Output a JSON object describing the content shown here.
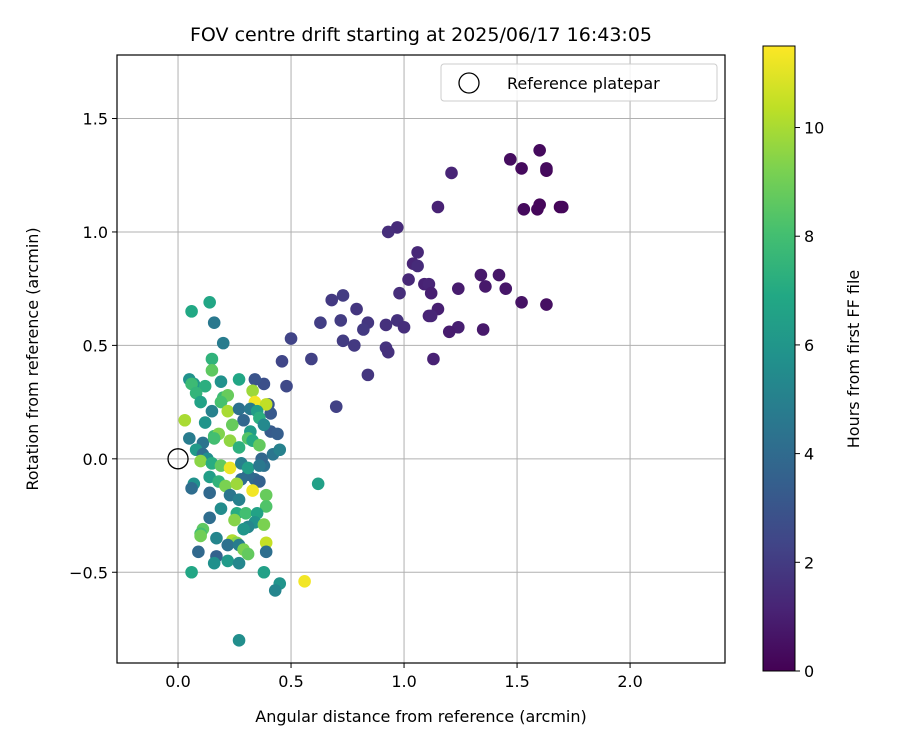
{
  "chart_data": {
    "type": "scatter",
    "title": "FOV centre drift starting at 2025/06/17 16:43:05",
    "xlabel": "Angular distance from reference (arcmin)",
    "ylabel": "Rotation from reference (arcmin)",
    "xlim": [
      -0.27,
      2.42
    ],
    "ylim": [
      -0.9,
      1.78
    ],
    "xticks": [
      0.0,
      0.5,
      1.0,
      1.5,
      2.0
    ],
    "xtick_labels": [
      "0.0",
      "0.5",
      "1.0",
      "1.5",
      "2.0"
    ],
    "yticks": [
      -0.5,
      0.0,
      0.5,
      1.0,
      1.5
    ],
    "ytick_labels": [
      "−0.5",
      "0.0",
      "0.5",
      "1.0",
      "1.5"
    ],
    "grid": true,
    "legend": {
      "entries": [
        "Reference platepar"
      ],
      "placement": "top-right"
    },
    "colorbar": {
      "label": "Hours from first FF file",
      "colormap": "viridis",
      "range": [
        0,
        11.5
      ],
      "ticks": [
        0,
        2,
        4,
        6,
        8,
        10
      ],
      "tick_labels": [
        "0",
        "2",
        "4",
        "6",
        "8",
        "10"
      ]
    },
    "reference_point": {
      "name": "Reference platepar",
      "x": 0.0,
      "y": 0.0
    },
    "series": [
      {
        "points": [
          {
            "x": 1.6,
            "y": 1.36,
            "c": 0.3
          },
          {
            "x": 1.47,
            "y": 1.32,
            "c": 0.4
          },
          {
            "x": 1.52,
            "y": 1.28,
            "c": 0.3
          },
          {
            "x": 1.63,
            "y": 1.27,
            "c": 0.2
          },
          {
            "x": 1.63,
            "y": 1.28,
            "c": 0.3
          },
          {
            "x": 1.6,
            "y": 1.12,
            "c": 0.2
          },
          {
            "x": 1.69,
            "y": 1.11,
            "c": 0.1
          },
          {
            "x": 1.7,
            "y": 1.11,
            "c": 0.2
          },
          {
            "x": 1.53,
            "y": 1.1,
            "c": 0.3
          },
          {
            "x": 1.59,
            "y": 1.1,
            "c": 0.2
          },
          {
            "x": 1.21,
            "y": 1.26,
            "c": 1.2
          },
          {
            "x": 1.15,
            "y": 1.11,
            "c": 1.1
          },
          {
            "x": 0.97,
            "y": 1.02,
            "c": 1.4
          },
          {
            "x": 0.93,
            "y": 1.0,
            "c": 1.5
          },
          {
            "x": 1.06,
            "y": 0.91,
            "c": 1.3
          },
          {
            "x": 1.04,
            "y": 0.86,
            "c": 1.2
          },
          {
            "x": 1.06,
            "y": 0.85,
            "c": 1.4
          },
          {
            "x": 1.02,
            "y": 0.79,
            "c": 1.3
          },
          {
            "x": 1.09,
            "y": 0.77,
            "c": 1.1
          },
          {
            "x": 1.11,
            "y": 0.77,
            "c": 1.2
          },
          {
            "x": 1.12,
            "y": 0.73,
            "c": 1.0
          },
          {
            "x": 0.98,
            "y": 0.73,
            "c": 1.5
          },
          {
            "x": 1.24,
            "y": 0.75,
            "c": 0.9
          },
          {
            "x": 1.34,
            "y": 0.81,
            "c": 0.8
          },
          {
            "x": 1.42,
            "y": 0.81,
            "c": 0.7
          },
          {
            "x": 1.36,
            "y": 0.76,
            "c": 0.8
          },
          {
            "x": 1.45,
            "y": 0.75,
            "c": 0.7
          },
          {
            "x": 1.52,
            "y": 0.69,
            "c": 0.6
          },
          {
            "x": 1.63,
            "y": 0.68,
            "c": 0.5
          },
          {
            "x": 1.15,
            "y": 0.66,
            "c": 1.0
          },
          {
            "x": 1.11,
            "y": 0.63,
            "c": 1.1
          },
          {
            "x": 1.12,
            "y": 0.63,
            "c": 1.2
          },
          {
            "x": 1.24,
            "y": 0.58,
            "c": 1.0
          },
          {
            "x": 1.2,
            "y": 0.56,
            "c": 0.9
          },
          {
            "x": 1.35,
            "y": 0.57,
            "c": 0.8
          },
          {
            "x": 1.13,
            "y": 0.44,
            "c": 1.1
          },
          {
            "x": 0.97,
            "y": 0.61,
            "c": 1.6
          },
          {
            "x": 1.0,
            "y": 0.58,
            "c": 1.5
          },
          {
            "x": 0.92,
            "y": 0.59,
            "c": 1.6
          },
          {
            "x": 0.92,
            "y": 0.49,
            "c": 1.7
          },
          {
            "x": 0.93,
            "y": 0.47,
            "c": 1.6
          },
          {
            "x": 0.68,
            "y": 0.7,
            "c": 1.9
          },
          {
            "x": 0.73,
            "y": 0.72,
            "c": 2.0
          },
          {
            "x": 0.79,
            "y": 0.66,
            "c": 1.8
          },
          {
            "x": 0.63,
            "y": 0.6,
            "c": 2.1
          },
          {
            "x": 0.72,
            "y": 0.61,
            "c": 2.0
          },
          {
            "x": 0.84,
            "y": 0.6,
            "c": 1.8
          },
          {
            "x": 0.82,
            "y": 0.57,
            "c": 1.9
          },
          {
            "x": 0.73,
            "y": 0.52,
            "c": 2.0
          },
          {
            "x": 0.78,
            "y": 0.5,
            "c": 1.9
          },
          {
            "x": 0.5,
            "y": 0.53,
            "c": 2.3
          },
          {
            "x": 0.59,
            "y": 0.44,
            "c": 2.2
          },
          {
            "x": 0.46,
            "y": 0.43,
            "c": 2.4
          },
          {
            "x": 0.84,
            "y": 0.37,
            "c": 1.8
          },
          {
            "x": 0.48,
            "y": 0.32,
            "c": 2.5
          },
          {
            "x": 0.7,
            "y": 0.23,
            "c": 2.2
          },
          {
            "x": 0.38,
            "y": 0.33,
            "c": 2.8
          },
          {
            "x": 0.34,
            "y": 0.35,
            "c": 3.0
          },
          {
            "x": 0.4,
            "y": 0.24,
            "c": 3.1
          },
          {
            "x": 0.41,
            "y": 0.2,
            "c": 3.2
          },
          {
            "x": 0.41,
            "y": 0.12,
            "c": 3.3
          },
          {
            "x": 0.44,
            "y": 0.11,
            "c": 3.4
          },
          {
            "x": 0.42,
            "y": 0.02,
            "c": 4.5
          },
          {
            "x": 0.45,
            "y": 0.04,
            "c": 5.0
          },
          {
            "x": 0.38,
            "y": -0.03,
            "c": 4.2
          },
          {
            "x": 0.37,
            "y": 0.0,
            "c": 3.8
          },
          {
            "x": 0.34,
            "y": -0.09,
            "c": 3.9
          },
          {
            "x": 0.36,
            "y": -0.1,
            "c": 3.6
          },
          {
            "x": 0.31,
            "y": -0.07,
            "c": 4.0
          },
          {
            "x": 0.28,
            "y": -0.09,
            "c": 4.1
          },
          {
            "x": 0.16,
            "y": 0.6,
            "c": 4.6
          },
          {
            "x": 0.2,
            "y": 0.51,
            "c": 4.8
          },
          {
            "x": 0.14,
            "y": 0.69,
            "c": 6.8
          },
          {
            "x": 0.06,
            "y": 0.65,
            "c": 6.9
          },
          {
            "x": 0.15,
            "y": 0.44,
            "c": 7.4
          },
          {
            "x": 0.15,
            "y": 0.39,
            "c": 8.6
          },
          {
            "x": 0.05,
            "y": 0.35,
            "c": 5.8
          },
          {
            "x": 0.07,
            "y": 0.33,
            "c": 6.2
          },
          {
            "x": 0.12,
            "y": 0.32,
            "c": 7.2
          },
          {
            "x": 0.06,
            "y": 0.33,
            "c": 7.8
          },
          {
            "x": 0.08,
            "y": 0.29,
            "c": 7.5
          },
          {
            "x": 0.19,
            "y": 0.34,
            "c": 5.8
          },
          {
            "x": 0.27,
            "y": 0.35,
            "c": 6.8
          },
          {
            "x": 0.2,
            "y": 0.27,
            "c": 7.8
          },
          {
            "x": 0.22,
            "y": 0.28,
            "c": 8.8
          },
          {
            "x": 0.33,
            "y": 0.3,
            "c": 9.8
          },
          {
            "x": 0.34,
            "y": 0.25,
            "c": 11.3
          },
          {
            "x": 0.39,
            "y": 0.24,
            "c": 10.4
          },
          {
            "x": 0.1,
            "y": 0.25,
            "c": 6.6
          },
          {
            "x": 0.15,
            "y": 0.21,
            "c": 5.0
          },
          {
            "x": 0.19,
            "y": 0.25,
            "c": 8.1
          },
          {
            "x": 0.22,
            "y": 0.21,
            "c": 10.0
          },
          {
            "x": 0.27,
            "y": 0.22,
            "c": 4.3
          },
          {
            "x": 0.29,
            "y": 0.17,
            "c": 3.8
          },
          {
            "x": 0.32,
            "y": 0.22,
            "c": 4.7
          },
          {
            "x": 0.35,
            "y": 0.21,
            "c": 6.4
          },
          {
            "x": 0.36,
            "y": 0.18,
            "c": 7.2
          },
          {
            "x": 0.38,
            "y": 0.15,
            "c": 5.4
          },
          {
            "x": 0.03,
            "y": 0.17,
            "c": 10.0
          },
          {
            "x": 0.12,
            "y": 0.16,
            "c": 5.9
          },
          {
            "x": 0.24,
            "y": 0.15,
            "c": 8.8
          },
          {
            "x": 0.32,
            "y": 0.12,
            "c": 6.3
          },
          {
            "x": 0.05,
            "y": 0.09,
            "c": 4.8
          },
          {
            "x": 0.11,
            "y": 0.07,
            "c": 4.4
          },
          {
            "x": 0.16,
            "y": 0.1,
            "c": 7.8
          },
          {
            "x": 0.18,
            "y": 0.11,
            "c": 9.3
          },
          {
            "x": 0.23,
            "y": 0.08,
            "c": 9.6
          },
          {
            "x": 0.27,
            "y": 0.05,
            "c": 7.3
          },
          {
            "x": 0.31,
            "y": 0.09,
            "c": 8.4
          },
          {
            "x": 0.33,
            "y": 0.08,
            "c": 7.0
          },
          {
            "x": 0.36,
            "y": 0.06,
            "c": 8.7
          },
          {
            "x": 0.16,
            "y": 0.09,
            "c": 8.0
          },
          {
            "x": 0.08,
            "y": 0.04,
            "c": 6.2
          },
          {
            "x": 0.11,
            "y": 0.02,
            "c": 4.2
          },
          {
            "x": 0.13,
            "y": 0.0,
            "c": 5.6
          },
          {
            "x": 0.1,
            "y": -0.01,
            "c": 9.5
          },
          {
            "x": 0.15,
            "y": -0.02,
            "c": 7.1
          },
          {
            "x": 0.19,
            "y": -0.03,
            "c": 8.7
          },
          {
            "x": 0.23,
            "y": -0.04,
            "c": 11.2
          },
          {
            "x": 0.28,
            "y": -0.02,
            "c": 4.9
          },
          {
            "x": 0.31,
            "y": -0.04,
            "c": 6.4
          },
          {
            "x": 0.36,
            "y": -0.03,
            "c": 4.6
          },
          {
            "x": 0.07,
            "y": -0.11,
            "c": 5.8
          },
          {
            "x": 0.06,
            "y": -0.13,
            "c": 4.1
          },
          {
            "x": 0.14,
            "y": -0.08,
            "c": 6.4
          },
          {
            "x": 0.18,
            "y": -0.1,
            "c": 7.4
          },
          {
            "x": 0.21,
            "y": -0.12,
            "c": 9.2
          },
          {
            "x": 0.26,
            "y": -0.11,
            "c": 9.8
          },
          {
            "x": 0.33,
            "y": -0.14,
            "c": 11.3
          },
          {
            "x": 0.39,
            "y": -0.16,
            "c": 8.8
          },
          {
            "x": 0.14,
            "y": -0.15,
            "c": 3.9
          },
          {
            "x": 0.23,
            "y": -0.16,
            "c": 4.5
          },
          {
            "x": 0.27,
            "y": -0.18,
            "c": 5.0
          },
          {
            "x": 0.39,
            "y": -0.21,
            "c": 8.3
          },
          {
            "x": 0.19,
            "y": -0.22,
            "c": 5.5
          },
          {
            "x": 0.26,
            "y": -0.24,
            "c": 7.1
          },
          {
            "x": 0.3,
            "y": -0.24,
            "c": 8.0
          },
          {
            "x": 0.35,
            "y": -0.24,
            "c": 6.6
          },
          {
            "x": 0.14,
            "y": -0.26,
            "c": 4.1
          },
          {
            "x": 0.25,
            "y": -0.27,
            "c": 9.4
          },
          {
            "x": 0.34,
            "y": -0.28,
            "c": 5.8
          },
          {
            "x": 0.38,
            "y": -0.29,
            "c": 9.2
          },
          {
            "x": 0.31,
            "y": -0.3,
            "c": 5.3
          },
          {
            "x": 0.29,
            "y": -0.31,
            "c": 6.0
          },
          {
            "x": 0.11,
            "y": -0.31,
            "c": 8.6
          },
          {
            "x": 0.1,
            "y": -0.33,
            "c": 8.0
          },
          {
            "x": 0.1,
            "y": -0.34,
            "c": 9.0
          },
          {
            "x": 0.17,
            "y": -0.35,
            "c": 5.2
          },
          {
            "x": 0.24,
            "y": -0.36,
            "c": 10.1
          },
          {
            "x": 0.26,
            "y": -0.37,
            "c": 9.4
          },
          {
            "x": 0.22,
            "y": -0.38,
            "c": 4.3
          },
          {
            "x": 0.27,
            "y": -0.38,
            "c": 4.8
          },
          {
            "x": 0.39,
            "y": -0.37,
            "c": 10.5
          },
          {
            "x": 0.29,
            "y": -0.4,
            "c": 9.2
          },
          {
            "x": 0.31,
            "y": -0.42,
            "c": 8.7
          },
          {
            "x": 0.09,
            "y": -0.41,
            "c": 3.9
          },
          {
            "x": 0.17,
            "y": -0.43,
            "c": 3.6
          },
          {
            "x": 0.39,
            "y": -0.41,
            "c": 4.2
          },
          {
            "x": 0.22,
            "y": -0.45,
            "c": 6.2
          },
          {
            "x": 0.16,
            "y": -0.46,
            "c": 5.7
          },
          {
            "x": 0.27,
            "y": -0.46,
            "c": 5.3
          },
          {
            "x": 0.06,
            "y": -0.5,
            "c": 6.8
          },
          {
            "x": 0.38,
            "y": -0.5,
            "c": 6.5
          },
          {
            "x": 0.45,
            "y": -0.55,
            "c": 5.9
          },
          {
            "x": 0.43,
            "y": -0.58,
            "c": 5.2
          },
          {
            "x": 0.56,
            "y": -0.54,
            "c": 11.3
          },
          {
            "x": 0.62,
            "y": -0.11,
            "c": 6.5
          },
          {
            "x": 0.27,
            "y": -0.8,
            "c": 5.6
          }
        ]
      }
    ]
  }
}
